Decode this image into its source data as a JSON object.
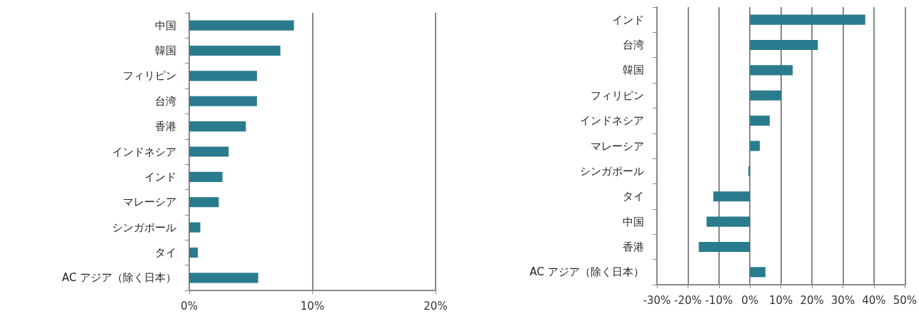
{
  "chart_data": [
    {
      "type": "bar",
      "orientation": "horizontal",
      "categories": [
        "中国",
        "韓国",
        "フィリピン",
        "台湾",
        "香港",
        "インドネシア",
        "インド",
        "マレーシア",
        "シンガポール",
        "タイ",
        "AC アジア（除く日本）"
      ],
      "values": [
        8.5,
        7.4,
        5.5,
        5.5,
        4.6,
        3.2,
        2.7,
        2.4,
        0.9,
        0.7,
        5.6
      ],
      "color": "#2a7b8e",
      "xlim": [
        0,
        20
      ],
      "xticks": [
        {
          "value": 0,
          "label": "0%"
        },
        {
          "value": 10,
          "label": "10%"
        },
        {
          "value": 20,
          "label": "20%"
        }
      ],
      "grid": "x"
    },
    {
      "type": "bar",
      "orientation": "horizontal",
      "categories": [
        "インド",
        "台湾",
        "韓国",
        "フィリピン",
        "インドネシア",
        "マレーシア",
        "シンガポール",
        "タイ",
        "中国",
        "香港",
        "AC アジア（除く日本）"
      ],
      "values": [
        37.2,
        21.9,
        13.8,
        10.1,
        6.4,
        3.2,
        -0.5,
        -11.8,
        -14,
        -16.5,
        5
      ],
      "color": "#2a7b8e",
      "xlim": [
        -30,
        50
      ],
      "xticks": [
        {
          "value": -30,
          "label": "-30%"
        },
        {
          "value": -20,
          "label": "-20%"
        },
        {
          "value": -10,
          "label": "-10%"
        },
        {
          "value": 0,
          "label": "0%"
        },
        {
          "value": 10,
          "label": "10%"
        },
        {
          "value": 20,
          "label": "20%"
        },
        {
          "value": 30,
          "label": "30%"
        },
        {
          "value": 40,
          "label": "40%"
        },
        {
          "value": 50,
          "label": "50%"
        }
      ],
      "grid": "x"
    }
  ]
}
